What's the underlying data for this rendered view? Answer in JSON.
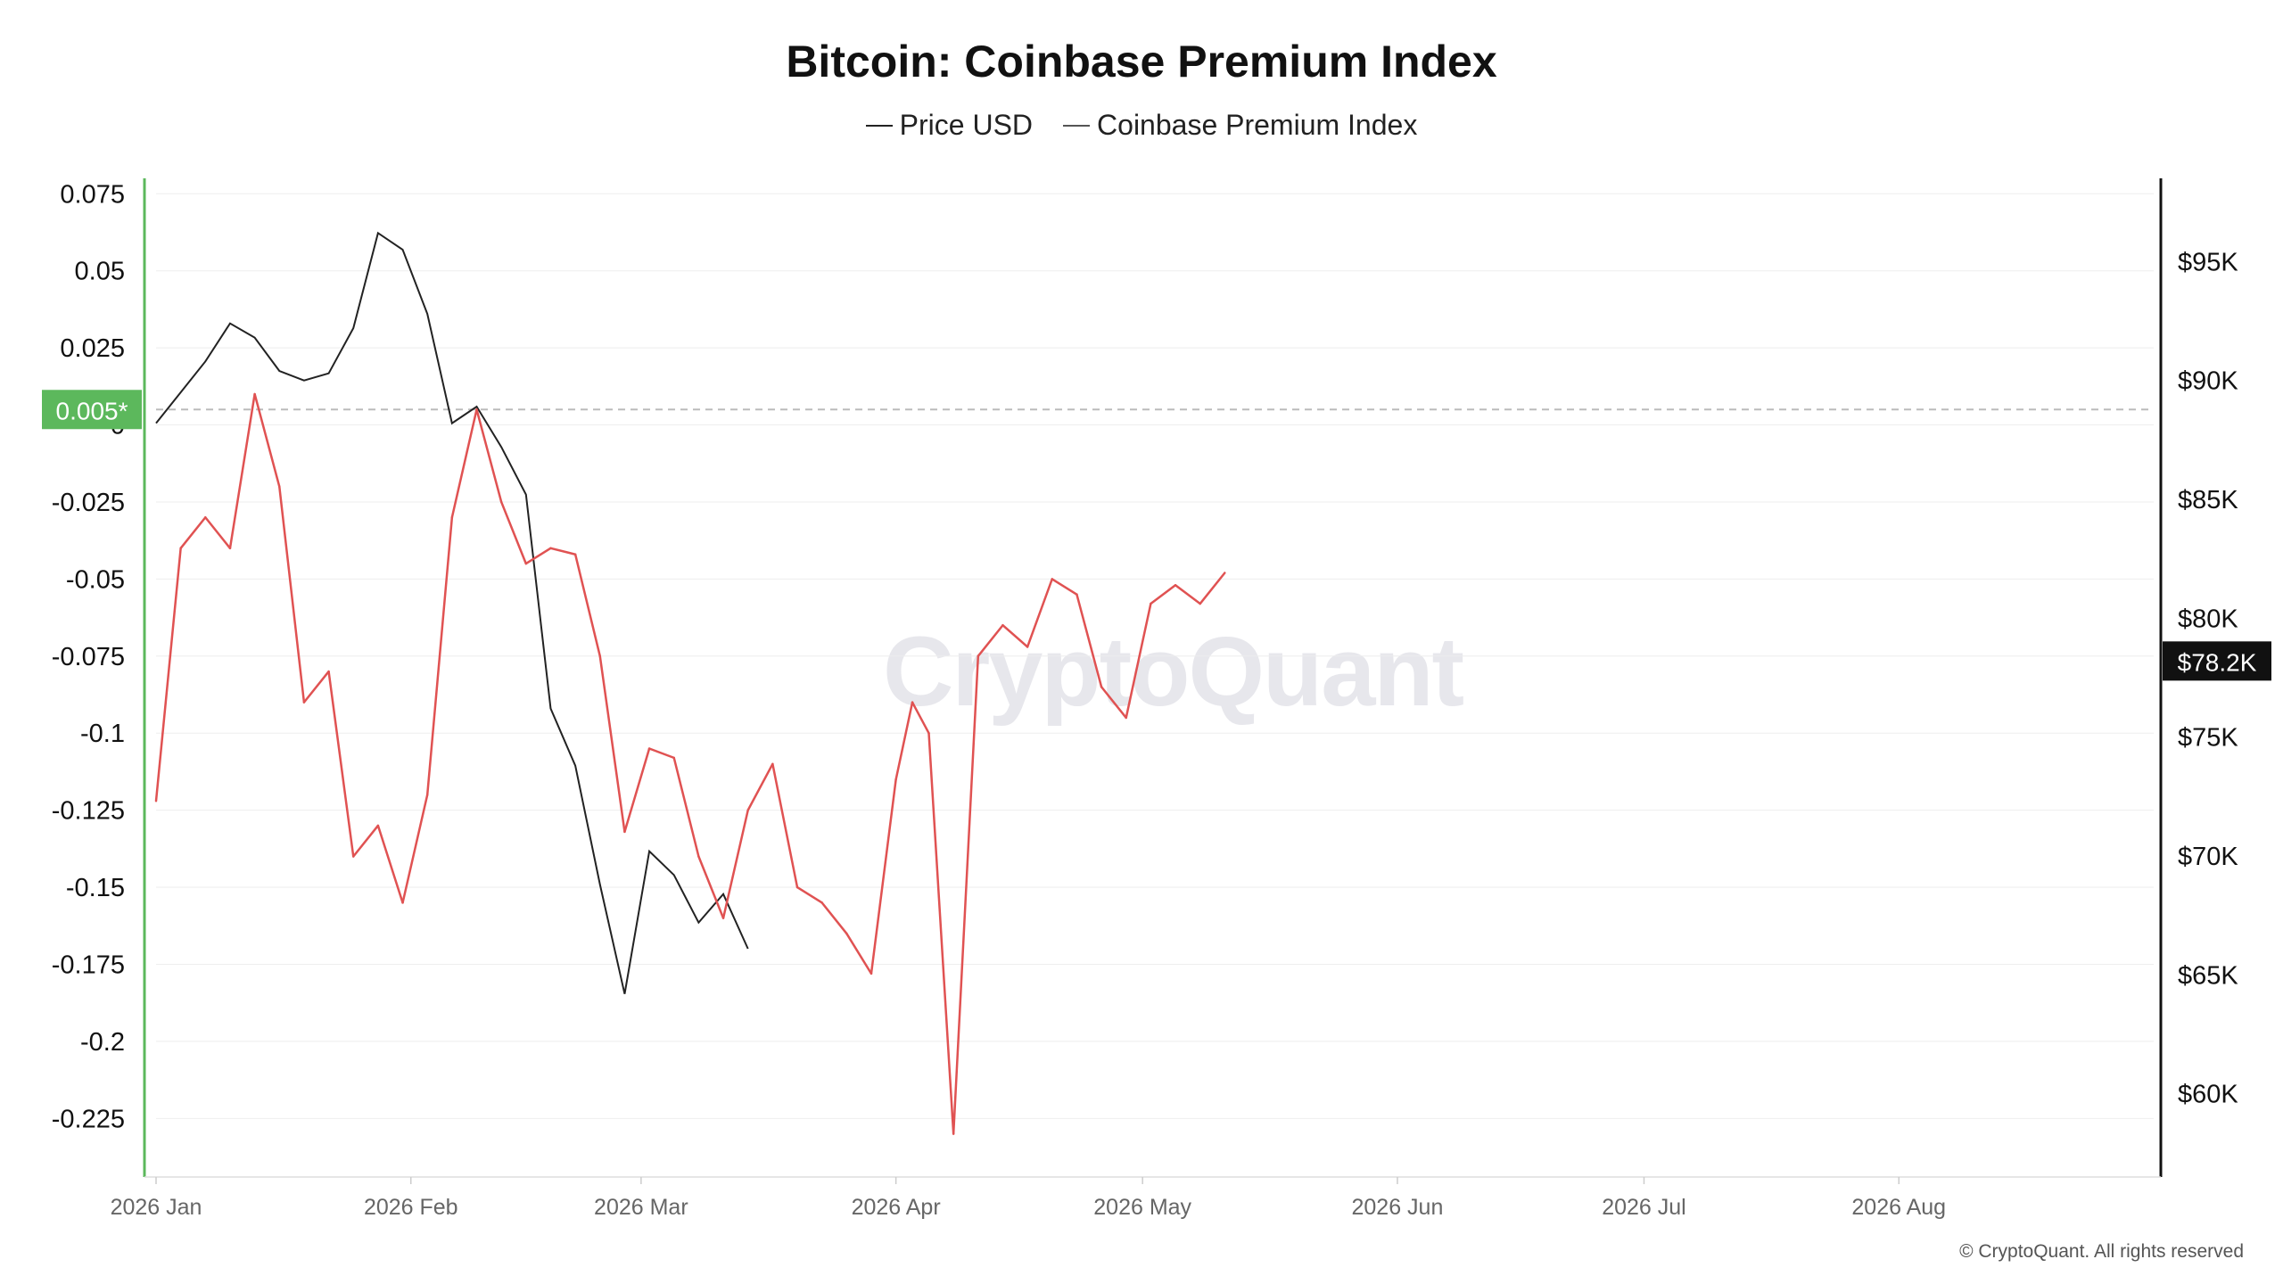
{
  "title": "Bitcoin: Coinbase Premium Index",
  "legend": [
    {
      "label": "Price USD",
      "color": "#222222"
    },
    {
      "label": "Coinbase Premium Index",
      "color": "#444444"
    }
  ],
  "watermark": "CryptoQuant",
  "copyright": "© CryptoQuant. All rights reserved",
  "colors": {
    "positive": "#5cb85c",
    "negative": "#e05252",
    "price": "#222222",
    "grid": "#eeeeee"
  },
  "chart_data": {
    "type": "line",
    "x_tick_labels": [
      "2026 Jan",
      "2026 Feb",
      "2026 Mar",
      "2026 Apr",
      "2026 May",
      "2026 Jun",
      "2026 Jul",
      "2026 Aug"
    ],
    "y_left_ticks": [
      "0.075",
      "0.05",
      "0.025",
      "0",
      "-0.025",
      "-0.05",
      "-0.075",
      "-0.1",
      "-0.125",
      "-0.15",
      "-0.175",
      "-0.2",
      "-0.225"
    ],
    "y_right_ticks": [
      "$95K",
      "$90K",
      "$85K",
      "$80K",
      "$75K",
      "$70K",
      "$65K",
      "$60K"
    ],
    "ylim_left": [
      -0.244,
      0.08
    ],
    "ylim_right": [
      56500,
      98500
    ],
    "current_premium_label": "0.005*",
    "current_premium": 0.005,
    "current_price_label": "$78.2K",
    "current_price": 78200,
    "x_start": "2026-01-01",
    "series": [
      {
        "name": "Coinbase Premium Index",
        "axis": "left",
        "points": [
          [
            "2026-01-01",
            -0.122
          ],
          [
            "2026-01-04",
            -0.04
          ],
          [
            "2026-01-07",
            -0.03
          ],
          [
            "2026-01-10",
            -0.04
          ],
          [
            "2026-01-13",
            0.01
          ],
          [
            "2026-01-16",
            -0.02
          ],
          [
            "2026-01-19",
            -0.09
          ],
          [
            "2026-01-22",
            -0.08
          ],
          [
            "2026-01-25",
            -0.14
          ],
          [
            "2026-01-28",
            -0.13
          ],
          [
            "2026-01-31",
            -0.155
          ],
          [
            "2026-02-03",
            -0.12
          ],
          [
            "2026-02-06",
            -0.03
          ],
          [
            "2026-02-09",
            0.005
          ],
          [
            "2026-02-12",
            -0.025
          ],
          [
            "2026-02-15",
            -0.045
          ],
          [
            "2026-02-18",
            -0.04
          ],
          [
            "2026-02-21",
            -0.042
          ],
          [
            "2026-02-24",
            -0.075
          ],
          [
            "2026-02-27",
            -0.132
          ],
          [
            "2026-03-02",
            -0.105
          ],
          [
            "2026-03-05",
            -0.108
          ],
          [
            "2026-03-08",
            -0.14
          ],
          [
            "2026-03-11",
            -0.16
          ],
          [
            "2026-03-14",
            -0.125
          ],
          [
            "2026-03-17",
            -0.11
          ],
          [
            "2026-03-20",
            -0.15
          ],
          [
            "2026-03-23",
            -0.155
          ],
          [
            "2026-03-26",
            -0.165
          ],
          [
            "2026-03-29",
            -0.178
          ],
          [
            "2026-04-01",
            -0.115
          ],
          [
            "2026-04-03",
            -0.09
          ],
          [
            "2026-04-05",
            -0.1
          ],
          [
            "2026-04-08",
            -0.23
          ],
          [
            "2026-04-11",
            -0.075
          ],
          [
            "2026-04-14",
            -0.065
          ],
          [
            "2026-04-17",
            -0.072
          ],
          [
            "2026-04-20",
            -0.05
          ],
          [
            "2026-04-23",
            -0.055
          ],
          [
            "2026-04-26",
            -0.085
          ],
          [
            "2026-04-29",
            -0.095
          ],
          [
            "2026-05-02",
            -0.058
          ],
          [
            "2026-05-05",
            -0.052
          ],
          [
            "2026-05-08",
            -0.058
          ],
          [
            "2026-05-11",
            -0.048
          ]
        ]
      },
      {
        "name": "Price USD",
        "axis": "right",
        "points": [
          [
            "2026-01-01",
            88200
          ],
          [
            "2026-01-04",
            89500
          ],
          [
            "2026-01-07",
            90800
          ],
          [
            "2026-01-10",
            92400
          ],
          [
            "2026-01-13",
            91800
          ],
          [
            "2026-01-16",
            90400
          ],
          [
            "2026-01-19",
            90000
          ],
          [
            "2026-01-22",
            90300
          ],
          [
            "2026-01-25",
            92200
          ],
          [
            "2026-01-28",
            96200
          ],
          [
            "2026-01-31",
            95500
          ],
          [
            "2026-02-03",
            92800
          ],
          [
            "2026-02-06",
            88200
          ],
          [
            "2026-02-09",
            88900
          ],
          [
            "2026-02-12",
            87200
          ],
          [
            "2026-02-15",
            85200
          ],
          [
            "2026-02-18",
            76200
          ],
          [
            "2026-02-21",
            73800
          ],
          [
            "2026-02-24",
            68800
          ],
          [
            "2026-02-27",
            64200
          ],
          [
            "2026-03-02",
            70200
          ],
          [
            "2026-03-05",
            69200
          ],
          [
            "2026-03-08",
            67200
          ],
          [
            "2026-03-11",
            68400
          ],
          [
            "2026-03-14",
            66100
          ]
        ]
      }
    ]
  }
}
